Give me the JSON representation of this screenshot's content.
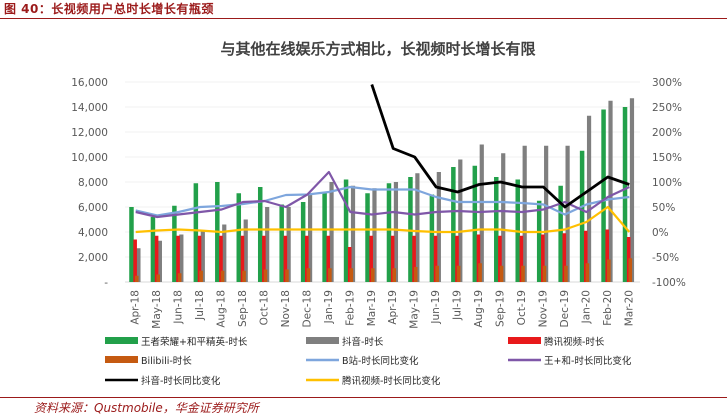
{
  "figure_caption": "图 40：长视频用户总时长增长有瓶颈",
  "source_text": "资料来源：Qustmobile，华金证券研究所",
  "chart_data": {
    "type": "bar",
    "title": "与其他在线娱乐方式相比，长视频时长增长有限",
    "categories": [
      "Apr-18",
      "May-18",
      "Jun-18",
      "Jul-18",
      "Aug-18",
      "Sep-18",
      "Oct-18",
      "Nov-18",
      "Dec-18",
      "Jan-19",
      "Feb-19",
      "Mar-19",
      "Apr-19",
      "May-19",
      "Jun-19",
      "Jul-19",
      "Aug-19",
      "Sep-19",
      "Oct-19",
      "Nov-19",
      "Dec-19",
      "Jan-20",
      "Feb-20",
      "Mar-20"
    ],
    "y_left": {
      "min": 0,
      "max": 16000,
      "ticks": [
        "-",
        "2,000",
        "4,000",
        "6,000",
        "8,000",
        "10,000",
        "12,000",
        "14,000",
        "16,000"
      ],
      "tick_values": [
        0,
        2000,
        4000,
        6000,
        8000,
        10000,
        12000,
        14000,
        16000
      ]
    },
    "y_right": {
      "min": -100,
      "max": 300,
      "ticks": [
        "-100%",
        "-50%",
        "0%",
        "50%",
        "100%",
        "150%",
        "200%",
        "250%",
        "300%"
      ],
      "tick_values": [
        -100,
        -50,
        0,
        50,
        100,
        150,
        200,
        250,
        300
      ]
    },
    "bar_series": [
      {
        "name": "王者荣耀+和平精英-时长",
        "color": "#22a04a",
        "values": [
          6000,
          5200,
          6100,
          7900,
          8000,
          7100,
          7600,
          6200,
          6400,
          7200,
          8200,
          7100,
          7900,
          8400,
          7000,
          9200,
          9300,
          8400,
          8200,
          6500,
          7700,
          10500,
          13800,
          14000
        ]
      },
      {
        "name": "抖音-时长",
        "color": "#7f7f7f",
        "values": [
          2700,
          3300,
          3800,
          4100,
          4600,
          5000,
          6000,
          6000,
          7100,
          8000,
          7700,
          7500,
          8000,
          8700,
          8800,
          9800,
          11000,
          10300,
          10900,
          10900,
          10900,
          13300,
          14500,
          14700
        ]
      },
      {
        "name": "腾讯视频-时长",
        "color": "#e8191b",
        "values": [
          3400,
          3700,
          3700,
          3700,
          3700,
          3700,
          3700,
          3700,
          3700,
          3700,
          2800,
          3700,
          3700,
          3700,
          3700,
          3700,
          3800,
          3700,
          3700,
          3800,
          3900,
          4100,
          4200,
          3600
        ]
      },
      {
        "name": "Bilibili-时长",
        "color": "#c55a11",
        "values": [
          500,
          600,
          700,
          900,
          900,
          900,
          1000,
          1000,
          1100,
          1100,
          1100,
          1100,
          1100,
          1200,
          1300,
          1300,
          1500,
          1300,
          1300,
          1300,
          1300,
          1500,
          1800,
          1900
        ]
      }
    ],
    "line_series": [
      {
        "name": "B站-时长同比变化",
        "color": "#7ea6dd",
        "values": [
          43,
          33,
          40,
          50,
          52,
          56,
          62,
          74,
          75,
          80,
          90,
          85,
          85,
          85,
          70,
          60,
          60,
          60,
          58,
          55,
          35,
          55,
          65,
          70
        ]
      },
      {
        "name": "王+和-时长同比变化",
        "color": "#7f57a8",
        "values": [
          40,
          30,
          35,
          40,
          45,
          60,
          62,
          50,
          75,
          120,
          40,
          35,
          40,
          35,
          40,
          42,
          40,
          42,
          40,
          45,
          60,
          40,
          70,
          90
        ]
      },
      {
        "name": "抖音-时长同比变化",
        "color": "#000000",
        "values": [
          null,
          null,
          null,
          null,
          null,
          null,
          null,
          null,
          null,
          null,
          null,
          295,
          167,
          150,
          90,
          80,
          95,
          100,
          90,
          90,
          50,
          80,
          110,
          95
        ]
      },
      {
        "name": "腾讯视频-时长同比变化",
        "color": "#ffc000",
        "values": [
          0,
          3,
          5,
          3,
          0,
          5,
          5,
          5,
          5,
          5,
          5,
          5,
          5,
          2,
          0,
          0,
          5,
          5,
          0,
          0,
          5,
          20,
          50,
          0
        ]
      }
    ],
    "legend_position": "bottom"
  }
}
